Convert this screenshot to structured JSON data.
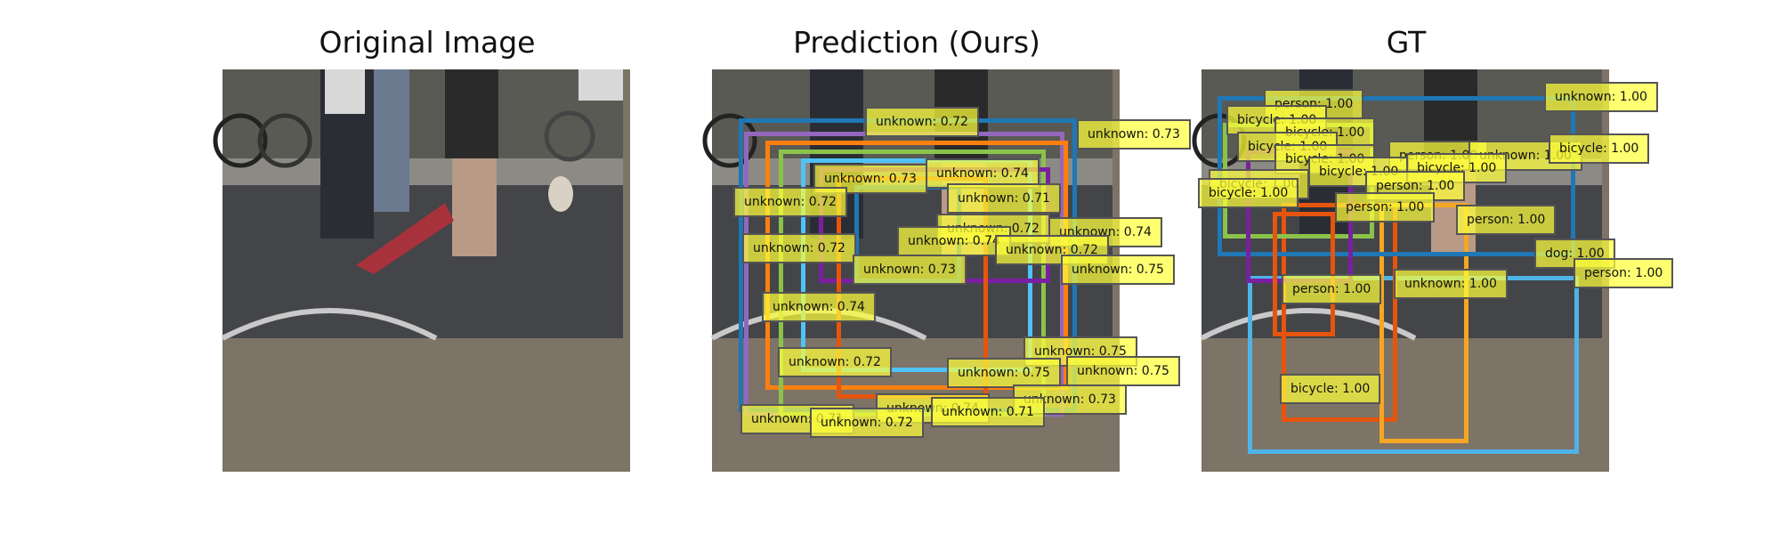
{
  "panels": [
    {
      "title": "Original Image"
    },
    {
      "title": "Prediction (Ours)"
    },
    {
      "title": "GT"
    }
  ],
  "prediction": {
    "labels": [
      "unknown: 0.72",
      "unknown: 0.73",
      "unknown: 0.73",
      "unknown: 0.74",
      "unknown: 0.72",
      "unknown: 0.71",
      "unknown: 0.72",
      "unknown: 0.74",
      "unknown: 0.72",
      "unknown: 0.74",
      "unknown: 0.72",
      "unknown: 0.73",
      "unknown: 0.75",
      "unknown: 0.74",
      "unknown: 0.75",
      "unknown: 0.72",
      "unknown: 0.75",
      "unknown: 0.75",
      "unknown: 0.74",
      "unknown: 0.73",
      "unknown: 0.71",
      "unknown: 0.71",
      "unknown: 0.72"
    ]
  },
  "ground_truth": {
    "labels": [
      "person: 1.00",
      "unknown: 1.00",
      "bicycle: 1.00",
      "bicycle: 1.00",
      "bicycle: 1.00",
      "bicycle: 1.00",
      "person: 1.00",
      "bicycle: 1.00",
      "unknown: 1.00",
      "bicycle: 1.00",
      "bicycle: 1.00",
      "bicycle: 1.00",
      "person: 1.00",
      "bicycle: 1.00",
      "person: 1.00",
      "person: 1.00",
      "person: 1.00",
      "dog: 1.00",
      "person: 1.00",
      "unknown: 1.00",
      "bicycle: 1.00"
    ]
  }
}
